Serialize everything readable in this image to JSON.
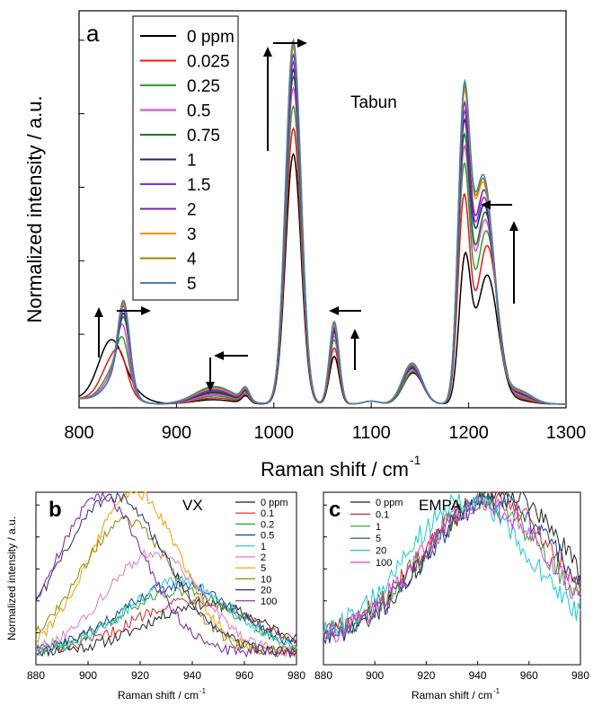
{
  "chart_data": [
    {
      "panel": "a",
      "type": "line",
      "annotation": "Tabun",
      "xlabel": "Raman shift / cm",
      "xlabel_sup": "-1",
      "ylabel": "Normalized intensity / a.u.",
      "xlim": [
        800,
        1300
      ],
      "ylim": [
        0,
        1.08
      ],
      "xticks": [
        "800",
        "900",
        "1000",
        "1100",
        "1200",
        "1300"
      ],
      "xtick_values": [
        800,
        900,
        1000,
        1100,
        1200,
        1300
      ],
      "ytick_values": [
        0,
        0.2,
        0.4,
        0.6,
        0.8,
        1.0
      ],
      "ytick_labels_shown": false,
      "legend_position": "top-left (inside plot)",
      "series": [
        {
          "name": "0 ppm",
          "color": "#000000",
          "peaks": [
            [
              833,
              0.16,
              13
            ],
            [
              855,
              0.02,
              15
            ],
            [
              938,
              0.012,
              20
            ],
            [
              971,
              0.02,
              4
            ],
            [
              1020,
              0.68,
              8
            ],
            [
              1062,
              0.13,
              5
            ],
            [
              1100,
              0.008,
              8
            ],
            [
              1143,
              0.085,
              10
            ],
            [
              1196,
              0.37,
              6
            ],
            [
              1219,
              0.35,
              11
            ],
            [
              1250,
              0.01,
              14
            ]
          ]
        },
        {
          "name": "0.025",
          "color": "#e31a1c",
          "peaks": [
            [
              836,
              0.12,
              12
            ],
            [
              843,
              0.035,
              6
            ],
            [
              940,
              0.017,
              20
            ],
            [
              971,
              0.022,
              4
            ],
            [
              1020,
              0.75,
              8
            ],
            [
              1062,
              0.153,
              5
            ],
            [
              1100,
              0.008,
              8
            ],
            [
              1143,
              0.088,
              10
            ],
            [
              1195,
              0.53,
              6
            ],
            [
              1219,
              0.43,
              11
            ],
            [
              1250,
              0.014,
              14
            ]
          ]
        },
        {
          "name": "0.25",
          "color": "#2ca02c",
          "peaks": [
            [
              838,
              0.09,
              12
            ],
            [
              845,
              0.1,
              6
            ],
            [
              940,
              0.022,
              20
            ],
            [
              971,
              0.024,
              4
            ],
            [
              1020,
              0.81,
              8
            ],
            [
              1062,
              0.175,
              5
            ],
            [
              1100,
              0.008,
              8
            ],
            [
              1143,
              0.09,
              10
            ],
            [
              1195,
              0.6,
              6
            ],
            [
              1218,
              0.47,
              11
            ],
            [
              1250,
              0.018,
              14
            ]
          ]
        },
        {
          "name": "0.5",
          "color": "#e040e0",
          "peaks": [
            [
              839,
              0.08,
              12
            ],
            [
              845,
              0.14,
              6
            ],
            [
              940,
              0.026,
              20
            ],
            [
              971,
              0.026,
              4
            ],
            [
              1020,
              0.86,
              8
            ],
            [
              1062,
              0.185,
              5
            ],
            [
              1100,
              0.008,
              8
            ],
            [
              1142,
              0.094,
              10
            ],
            [
              1195,
              0.63,
              6
            ],
            [
              1217,
              0.5,
              11
            ],
            [
              1250,
              0.022,
              14
            ]
          ]
        },
        {
          "name": "0.75",
          "color": "#1a7a1a",
          "peaks": [
            [
              840,
              0.07,
              12
            ],
            [
              846,
              0.17,
              6
            ],
            [
              939,
              0.03,
              20
            ],
            [
              971,
              0.028,
              4
            ],
            [
              1020,
              0.89,
              8
            ],
            [
              1062,
              0.195,
              5
            ],
            [
              1100,
              0.008,
              8
            ],
            [
              1142,
              0.097,
              10
            ],
            [
              1195,
              0.66,
              6
            ],
            [
              1217,
              0.52,
              11
            ],
            [
              1250,
              0.026,
              14
            ]
          ]
        },
        {
          "name": "1",
          "color": "#1a237e",
          "peaks": [
            [
              840,
              0.07,
              12
            ],
            [
              846,
              0.18,
              6
            ],
            [
              939,
              0.033,
              20
            ],
            [
              971,
              0.029,
              4
            ],
            [
              1020,
              0.91,
              8
            ],
            [
              1062,
              0.2,
              5
            ],
            [
              1100,
              0.008,
              8
            ],
            [
              1142,
              0.1,
              10
            ],
            [
              1195,
              0.68,
              6
            ],
            [
              1216,
              0.54,
              11
            ],
            [
              1250,
              0.028,
              14
            ]
          ]
        },
        {
          "name": "1.5",
          "color": "#8a2be2",
          "peaks": [
            [
              840,
              0.07,
              12
            ],
            [
              846,
              0.19,
              6
            ],
            [
              939,
              0.036,
              20
            ],
            [
              971,
              0.03,
              4
            ],
            [
              1020,
              0.93,
              8
            ],
            [
              1062,
              0.205,
              5
            ],
            [
              1100,
              0.008,
              8
            ],
            [
              1142,
              0.102,
              10
            ],
            [
              1195,
              0.7,
              6
            ],
            [
              1216,
              0.56,
              11
            ],
            [
              1250,
              0.03,
              14
            ]
          ]
        },
        {
          "name": "2",
          "color": "#7b1fa2",
          "peaks": [
            [
              840,
              0.07,
              12
            ],
            [
              846,
              0.2,
              6
            ],
            [
              939,
              0.039,
              20
            ],
            [
              971,
              0.031,
              4
            ],
            [
              1020,
              0.95,
              8
            ],
            [
              1062,
              0.21,
              5
            ],
            [
              1100,
              0.008,
              8
            ],
            [
              1142,
              0.105,
              10
            ],
            [
              1195,
              0.72,
              6
            ],
            [
              1216,
              0.58,
              11
            ],
            [
              1250,
              0.032,
              14
            ]
          ]
        },
        {
          "name": "3",
          "color": "#ff8c00",
          "peaks": [
            [
              840,
              0.07,
              12
            ],
            [
              846,
              0.205,
              6
            ],
            [
              939,
              0.042,
              20
            ],
            [
              971,
              0.032,
              4
            ],
            [
              1020,
              0.97,
              8
            ],
            [
              1062,
              0.215,
              5
            ],
            [
              1100,
              0.008,
              8
            ],
            [
              1142,
              0.108,
              10
            ],
            [
              1195,
              0.73,
              6
            ],
            [
              1215,
              0.6,
              11
            ],
            [
              1250,
              0.034,
              14
            ]
          ]
        },
        {
          "name": "4",
          "color": "#8b8b00",
          "peaks": [
            [
              840,
              0.07,
              12
            ],
            [
              846,
              0.21,
              6
            ],
            [
              939,
              0.045,
              20
            ],
            [
              971,
              0.033,
              4
            ],
            [
              1020,
              0.98,
              8
            ],
            [
              1062,
              0.22,
              5
            ],
            [
              1100,
              0.008,
              8
            ],
            [
              1142,
              0.11,
              10
            ],
            [
              1195,
              0.74,
              6
            ],
            [
              1215,
              0.61,
              11
            ],
            [
              1250,
              0.036,
              14
            ]
          ]
        },
        {
          "name": "5",
          "color": "#4682b4",
          "peaks": [
            [
              840,
              0.07,
              12
            ],
            [
              846,
              0.215,
              6
            ],
            [
              939,
              0.048,
              20
            ],
            [
              971,
              0.034,
              4
            ],
            [
              1020,
              0.99,
              8
            ],
            [
              1062,
              0.225,
              5
            ],
            [
              1100,
              0.008,
              8
            ],
            [
              1142,
              0.112,
              10
            ],
            [
              1195,
              0.75,
              6
            ],
            [
              1215,
              0.62,
              11
            ],
            [
              1250,
              0.038,
              14
            ]
          ]
        }
      ]
    },
    {
      "panel": "b",
      "type": "line",
      "annotation": "VX",
      "xlabel": "Raman shift / cm",
      "xlabel_sup": "-1",
      "ylabel": "Normalized intensity / a.u.",
      "xlim": [
        880,
        980
      ],
      "ylim": [
        0,
        1.08
      ],
      "xticks": [
        "880",
        "900",
        "920",
        "940",
        "960",
        "980"
      ],
      "xtick_values": [
        880,
        900,
        920,
        940,
        960,
        980
      ],
      "ytick_values": [
        0,
        0.2,
        0.4,
        0.6,
        0.8,
        1.0
      ],
      "legend_position": "top-right",
      "series": [
        {
          "name": "0 ppm",
          "color": "#222222",
          "peak": [
            945,
            0.3,
            22
          ]
        },
        {
          "name": "0.1",
          "color": "#d62728",
          "peak": [
            940,
            0.33,
            22
          ]
        },
        {
          "name": "0.2",
          "color": "#2ca02c",
          "peak": [
            935,
            0.38,
            22
          ]
        },
        {
          "name": "0.5",
          "color": "#1f3f99",
          "peak": [
            935,
            0.42,
            22
          ]
        },
        {
          "name": "1",
          "color": "#17c8d8",
          "peak": [
            935,
            0.44,
            20
          ]
        },
        {
          "name": "2",
          "color": "#e377c2",
          "peak": [
            925,
            0.62,
            18
          ]
        },
        {
          "name": "5",
          "color": "#ff9900",
          "peak": [
            918,
            1.0,
            17
          ]
        },
        {
          "name": "10",
          "color": "#8b8b00",
          "peak": [
            915,
            0.82,
            18
          ]
        },
        {
          "name": "20",
          "color": "#2a2a80",
          "peak": [
            910,
            0.97,
            20
          ]
        },
        {
          "name": "100",
          "color": "#7b1fa2",
          "peak": [
            905,
            0.97,
            17
          ]
        }
      ]
    },
    {
      "panel": "c",
      "type": "line",
      "annotation": "EMPA",
      "xlabel": "Raman shift / cm",
      "xlabel_sup": "-1",
      "xlim": [
        880,
        980
      ],
      "ylim": [
        0,
        1.08
      ],
      "xticks": [
        "880",
        "900",
        "920",
        "940",
        "960",
        "980"
      ],
      "xtick_values": [
        880,
        900,
        920,
        940,
        960,
        980
      ],
      "ytick_values": [
        0,
        0.2,
        0.4,
        0.6,
        0.8,
        1.0
      ],
      "legend_position": "top-left",
      "series": [
        {
          "name": "0 ppm",
          "color": "#222222",
          "peak": [
            948,
            0.95,
            26
          ]
        },
        {
          "name": "0.1",
          "color": "#d62728",
          "peak": [
            944,
            0.9,
            26
          ]
        },
        {
          "name": "1",
          "color": "#2ca02c",
          "peak": [
            942,
            0.86,
            25
          ]
        },
        {
          "name": "5",
          "color": "#1f3f99",
          "peak": [
            946,
            0.88,
            26
          ]
        },
        {
          "name": "20",
          "color": "#17c8d8",
          "peak": [
            936,
            0.88,
            24
          ]
        },
        {
          "name": "100",
          "color": "#e040e0",
          "peak": [
            942,
            0.85,
            25
          ]
        }
      ]
    }
  ]
}
